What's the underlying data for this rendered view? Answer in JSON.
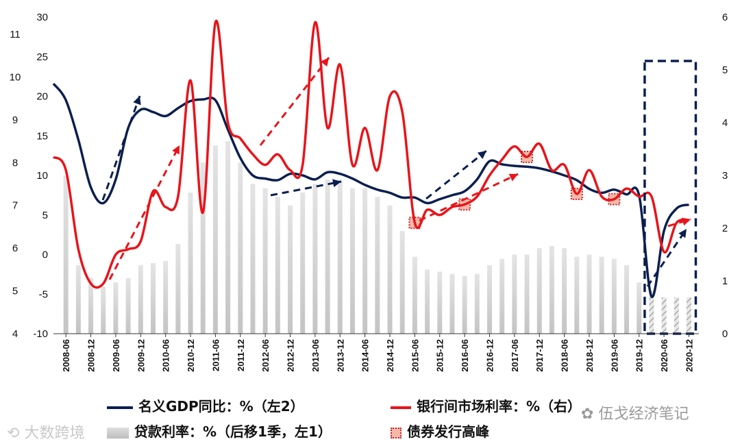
{
  "chart_data": {
    "type": "line",
    "x": [
      "2008-06",
      "2008-09",
      "2008-12",
      "2009-03",
      "2009-06",
      "2009-09",
      "2009-12",
      "2010-03",
      "2010-06",
      "2010-09",
      "2010-12",
      "2011-03",
      "2011-06",
      "2011-09",
      "2011-12",
      "2012-03",
      "2012-06",
      "2012-09",
      "2012-12",
      "2013-03",
      "2013-06",
      "2013-09",
      "2013-12",
      "2014-03",
      "2014-06",
      "2014-09",
      "2014-12",
      "2015-03",
      "2015-06",
      "2015-09",
      "2015-12",
      "2016-03",
      "2016-06",
      "2016-09",
      "2016-12",
      "2017-03",
      "2017-06",
      "2017-09",
      "2017-12",
      "2018-03",
      "2018-06",
      "2018-09",
      "2018-12",
      "2019-03",
      "2019-06",
      "2019-09",
      "2019-12",
      "2020-03",
      "2020-06",
      "2020-09",
      "2020-12"
    ],
    "x_tick_labels": [
      "2008-06",
      "2008-12",
      "2009-06",
      "2009-12",
      "2010-06",
      "2010-12",
      "2011-06",
      "2011-12",
      "2012-06",
      "2012-12",
      "2013-06",
      "2013-12",
      "2014-06",
      "2014-12",
      "2015-06",
      "2015-12",
      "2016-06",
      "2016-12",
      "2017-06",
      "2017-12",
      "2018-06",
      "2018-12",
      "2019-06",
      "2019-12",
      "2020-06",
      "2020-12"
    ],
    "axes": {
      "left1": {
        "ticks": [
          4,
          5,
          6,
          7,
          8,
          9,
          10,
          11
        ],
        "range": [
          4,
          11.4
        ]
      },
      "left2": {
        "ticks": [
          -10,
          -5,
          0,
          5,
          10,
          15,
          20,
          25,
          30
        ],
        "range": [
          -10,
          30
        ]
      },
      "right": {
        "ticks": [
          0,
          1,
          2,
          3,
          4,
          5,
          6
        ],
        "range": [
          0,
          6
        ]
      }
    },
    "series": [
      {
        "name": "名义GDP同比：%（左2）",
        "axis": "left2",
        "color": "#0b1f4f",
        "x": [
          "2008-03",
          "2008-06",
          "2008-09",
          "2008-12",
          "2009-03",
          "2009-06",
          "2009-09",
          "2009-12",
          "2010-03",
          "2010-06",
          "2010-09",
          "2010-12",
          "2011-03",
          "2011-06",
          "2011-09",
          "2011-12",
          "2012-03",
          "2012-06",
          "2012-09",
          "2012-12",
          "2013-03",
          "2013-06",
          "2013-09",
          "2013-12",
          "2014-03",
          "2014-06",
          "2014-09",
          "2014-12",
          "2015-03",
          "2015-06",
          "2015-09",
          "2015-12",
          "2016-03",
          "2016-06",
          "2016-09",
          "2016-12",
          "2017-03",
          "2017-06",
          "2017-09",
          "2017-12",
          "2018-03",
          "2018-06",
          "2018-09",
          "2018-12",
          "2019-03",
          "2019-06",
          "2019-09",
          "2019-12",
          "2020-03",
          "2020-06",
          "2020-09",
          "2020-12"
        ],
        "values": [
          21.6,
          19.5,
          14.5,
          8.5,
          6.5,
          9.5,
          16.0,
          18.3,
          18.0,
          17.5,
          18.5,
          19.4,
          19.6,
          19.5,
          15.8,
          12.2,
          10.0,
          9.6,
          9.4,
          10.2,
          10.0,
          9.5,
          10.4,
          10.2,
          9.6,
          8.8,
          8.2,
          7.8,
          7.2,
          7.2,
          6.5,
          7.0,
          7.5,
          8.0,
          9.5,
          11.8,
          11.4,
          11.2,
          11.1,
          10.9,
          10.5,
          10.0,
          9.4,
          8.3,
          7.8,
          8.2,
          7.6,
          7.5,
          -5.3,
          3.0,
          5.8,
          6.3
        ]
      },
      {
        "name": "银行间市场利率：%（右）",
        "axis": "right",
        "color": "#e8141a",
        "x": [
          "2008-03",
          "2008-06",
          "2008-09",
          "2008-12",
          "2009-03",
          "2009-06",
          "2009-09",
          "2009-12",
          "2010-03",
          "2010-06",
          "2010-09",
          "2010-12",
          "2011-03",
          "2011-06",
          "2011-09",
          "2011-12",
          "2012-03",
          "2012-06",
          "2012-09",
          "2012-12",
          "2013-03",
          "2013-06",
          "2013-09",
          "2013-12",
          "2014-03",
          "2014-06",
          "2014-09",
          "2014-12",
          "2015-03",
          "2015-06",
          "2015-09",
          "2015-12",
          "2016-03",
          "2016-06",
          "2016-09",
          "2016-12",
          "2017-03",
          "2017-06",
          "2017-09",
          "2017-12",
          "2018-03",
          "2018-06",
          "2018-09",
          "2018-12",
          "2019-03",
          "2019-06",
          "2019-09",
          "2019-12",
          "2020-03",
          "2020-06",
          "2020-09",
          "2020-12"
        ],
        "values": [
          3.35,
          3.1,
          1.6,
          0.95,
          0.95,
          1.5,
          1.6,
          1.75,
          2.7,
          2.4,
          2.6,
          4.8,
          2.3,
          5.9,
          4.0,
          3.7,
          3.4,
          3.2,
          3.4,
          3.1,
          3.2,
          5.9,
          3.9,
          5.1,
          3.2,
          3.9,
          3.1,
          4.5,
          4.2,
          2.1,
          2.35,
          2.25,
          2.4,
          2.45,
          2.6,
          3.0,
          3.3,
          3.55,
          3.35,
          3.6,
          3.1,
          3.2,
          2.65,
          3.1,
          2.6,
          2.55,
          2.75,
          2.6,
          2.6,
          1.55,
          2.1,
          2.15
        ]
      },
      {
        "name": "贷款利率：%（后移1季，左1）",
        "axis": "left1",
        "type": "bar",
        "color": "#c8c8c8",
        "x": [
          "2008-06",
          "2008-09",
          "2008-12",
          "2009-03",
          "2009-06",
          "2009-09",
          "2009-12",
          "2010-03",
          "2010-06",
          "2010-09",
          "2010-12",
          "2011-03",
          "2011-06",
          "2011-09",
          "2011-12",
          "2012-03",
          "2012-06",
          "2012-09",
          "2012-12",
          "2013-03",
          "2013-06",
          "2013-09",
          "2013-12",
          "2014-03",
          "2014-06",
          "2014-09",
          "2014-12",
          "2015-03",
          "2015-06",
          "2015-09",
          "2015-12",
          "2016-03",
          "2016-06",
          "2016-09",
          "2016-12",
          "2017-03",
          "2017-06",
          "2017-09",
          "2017-12",
          "2018-03",
          "2018-06",
          "2018-09",
          "2018-12",
          "2019-03",
          "2019-06",
          "2019-09",
          "2019-12",
          "2020-03",
          "2020-06",
          "2020-09",
          "2020-12"
        ],
        "values": [
          7.7,
          5.6,
          5.3,
          5.1,
          5.2,
          5.3,
          5.6,
          5.65,
          5.7,
          6.1,
          7.3,
          8.0,
          8.4,
          8.5,
          8.0,
          7.5,
          7.4,
          7.2,
          7.0,
          7.3,
          7.5,
          7.6,
          7.6,
          7.4,
          7.4,
          7.2,
          7.0,
          6.4,
          5.8,
          5.5,
          5.45,
          5.4,
          5.35,
          5.4,
          5.6,
          5.75,
          5.85,
          5.85,
          6.0,
          6.05,
          6.0,
          5.8,
          5.85,
          5.8,
          5.75,
          5.6,
          5.2,
          5.0,
          4.85,
          4.85,
          4.85
        ]
      }
    ],
    "bond_issuance_peaks": [
      "2015-06",
      "2016-06",
      "2017-09",
      "2018-09",
      "2019-06"
    ],
    "highlight_box": {
      "x_from": "2020-03",
      "x_to": "2020-12"
    }
  },
  "legend": {
    "gdp": "名义GDP同比：%（左2）",
    "rate": "银行间市场利率：%（右）",
    "loan": "贷款利率：%（后移1季，左1）",
    "bond": "债券发行高峰"
  },
  "watermarks": {
    "left": "大数跨境",
    "right": "伍戈经济笔记"
  }
}
